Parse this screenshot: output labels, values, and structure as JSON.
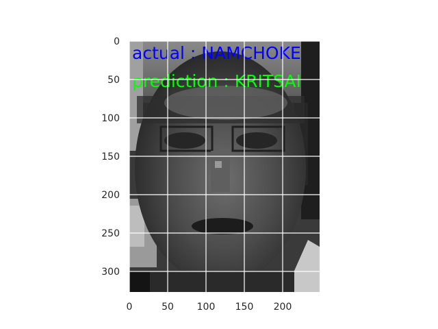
{
  "overlay": {
    "actual_text": "actual : NAMCHOKE",
    "prediction_text": "prediction : KRITSAI",
    "actual_color": "#0000ff",
    "prediction_color": "#00ff00"
  },
  "axes": {
    "x_ticks": [
      "0",
      "50",
      "100",
      "150",
      "200"
    ],
    "y_ticks": [
      "0",
      "50",
      "100",
      "150",
      "200",
      "250",
      "300"
    ],
    "grid": true,
    "grid_color": "#ffffff"
  },
  "image": {
    "description_tag": "grayscale-face-photo"
  }
}
